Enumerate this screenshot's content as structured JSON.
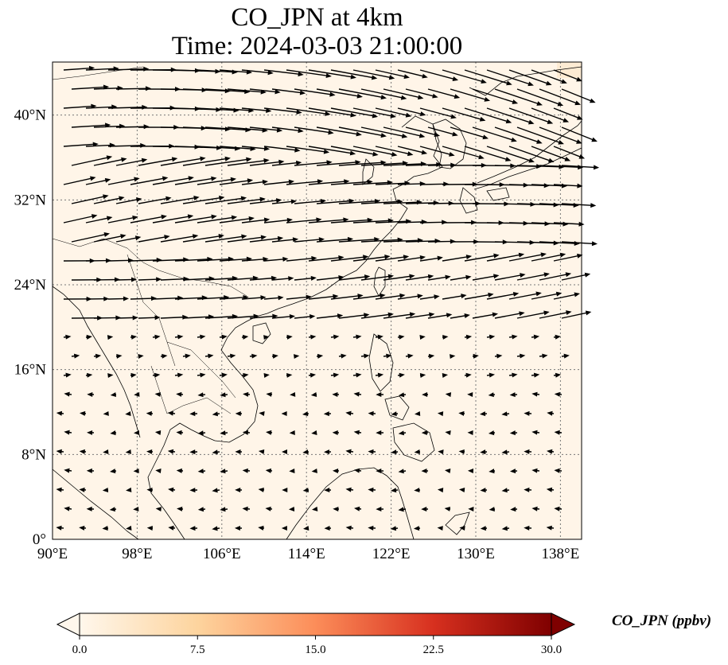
{
  "title": {
    "line1": "CO_JPN at 4km",
    "line2": "Time: 2024-03-03 21:00:00"
  },
  "map": {
    "lon_range": [
      90,
      140
    ],
    "lat_range": [
      0,
      45
    ],
    "lon_ticks": [
      "90°E",
      "98°E",
      "106°E",
      "114°E",
      "122°E",
      "130°E",
      "138°E"
    ],
    "lat_ticks": [
      "0°",
      "8°N",
      "16°N",
      "24°N",
      "32°N",
      "40°N"
    ],
    "gridlines": "dotted",
    "background_color": "#fff5e8",
    "coastline_color": "#000000",
    "vector_color": "#000000"
  },
  "colorbar": {
    "label": "CO_JPN (ppbv)",
    "ticks": [
      "0.0",
      "7.5",
      "15.0",
      "22.5",
      "30.0"
    ],
    "range": [
      0,
      30
    ],
    "colormap": "OrRd",
    "extend": "both"
  }
}
